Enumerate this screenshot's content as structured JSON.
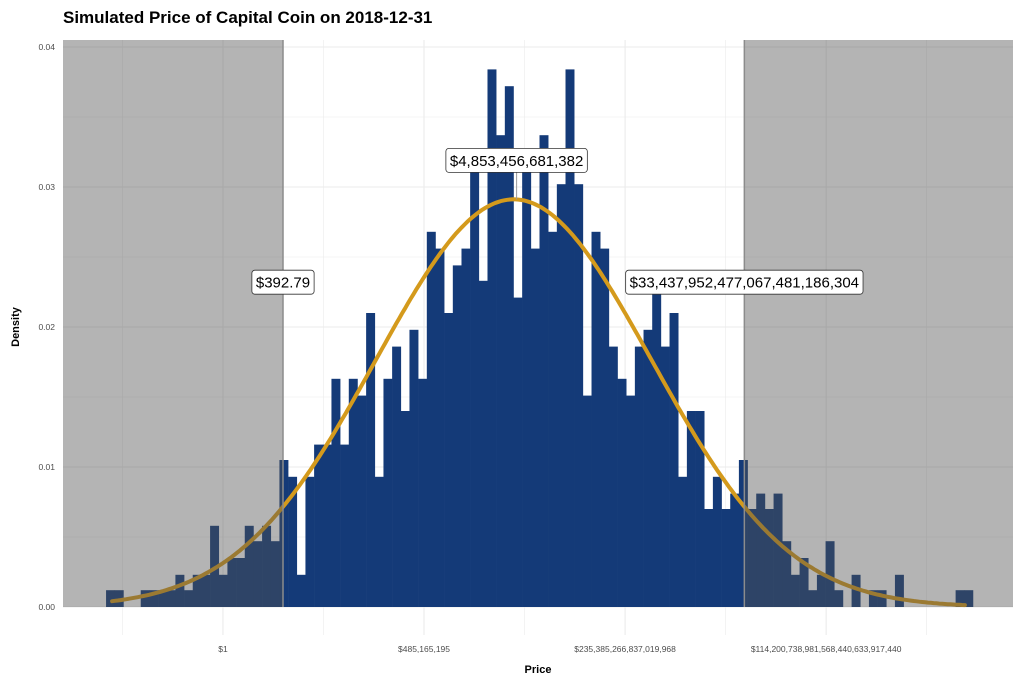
{
  "chart_data": {
    "type": "histogram",
    "title": "Simulated Price of Capital Coin on 2018-12-31",
    "xlabel": "Price",
    "ylabel": "Density",
    "x_scale": "log10",
    "xlim_log10": [
      -6.91,
      34.13
    ],
    "ylim": [
      -0.002,
      0.0405
    ],
    "grid": true,
    "x_ticks": [
      {
        "value_log10": 0,
        "label": "$1"
      },
      {
        "value_log10": 8.686,
        "label": "$485,165,195"
      },
      {
        "value_log10": 17.372,
        "label": "$235,385,266,837,019,968"
      },
      {
        "value_log10": 26.058,
        "label": "$114,200,738,981,568,440,633,917,440"
      }
    ],
    "y_ticks": [
      {
        "value": 0.0,
        "label": "0.00"
      },
      {
        "value": 0.01,
        "label": "0.01"
      },
      {
        "value": 0.02,
        "label": "0.02"
      },
      {
        "value": 0.03,
        "label": "0.03"
      },
      {
        "value": 0.04,
        "label": "0.04"
      }
    ],
    "bins": {
      "start_log10": -5.05,
      "width_log10": 0.3745,
      "density": [
        0.0012,
        0.0012,
        0,
        0,
        0.0012,
        0.0012,
        0.0012,
        0.0012,
        0.0023,
        0.0012,
        0.0023,
        0.0023,
        0.0058,
        0.0023,
        0.0035,
        0.0035,
        0.0058,
        0.0047,
        0.0058,
        0.0047,
        0.0105,
        0.0093,
        0.0023,
        0.0093,
        0.0116,
        0.0116,
        0.0163,
        0.0116,
        0.0163,
        0.0151,
        0.021,
        0.0093,
        0.0163,
        0.0186,
        0.014,
        0.0198,
        0.0163,
        0.0268,
        0.0256,
        0.021,
        0.0244,
        0.0256,
        0.0314,
        0.0233,
        0.0384,
        0.0337,
        0.0372,
        0.0221,
        0.0314,
        0.0256,
        0.0337,
        0.0268,
        0.0302,
        0.0384,
        0.0302,
        0.0151,
        0.0268,
        0.0256,
        0.0186,
        0.0163,
        0.0151,
        0.0186,
        0.0198,
        0.0233,
        0.0186,
        0.021,
        0.0093,
        0.014,
        0.014,
        0.007,
        0.0093,
        0.007,
        0.0081,
        0.0105,
        0.007,
        0.0081,
        0.007,
        0.0081,
        0.0047,
        0.0023,
        0.0035,
        0.0012,
        0.0023,
        0.0047,
        0.0012,
        0,
        0.0023,
        0,
        0.0012,
        0.0012,
        0,
        0.0023,
        0,
        0,
        0,
        0,
        0,
        0,
        0.0012,
        0.0012
      ]
    },
    "fit_curve": {
      "distribution": "normal",
      "mean_log10": 12.56,
      "sd_log10": 5.95,
      "x_range_log10": [
        -4.79,
        32.05
      ]
    },
    "shaded_intervals": [
      {
        "from_log10": -6.91,
        "to_log10": 2.594
      },
      {
        "from_log10": 22.524,
        "to_log10": 34.13
      }
    ],
    "annotations": [
      {
        "label": "$392.79",
        "x_log10": 2.594,
        "y": 0.0232,
        "kind": "lower"
      },
      {
        "label": "$4,853,456,681,382",
        "x_log10": 12.686,
        "y": 0.0319,
        "kind": "median"
      },
      {
        "label": "$33,437,952,477,067,481,186,304",
        "x_log10": 22.524,
        "y": 0.0232,
        "kind": "upper"
      }
    ],
    "colors": {
      "bars": "#143a78",
      "curve": "#d49a1c",
      "shade": "rgba(80,80,80,0.43)",
      "grid": "#ebebeb",
      "boundary": "#8c8c8c"
    }
  }
}
